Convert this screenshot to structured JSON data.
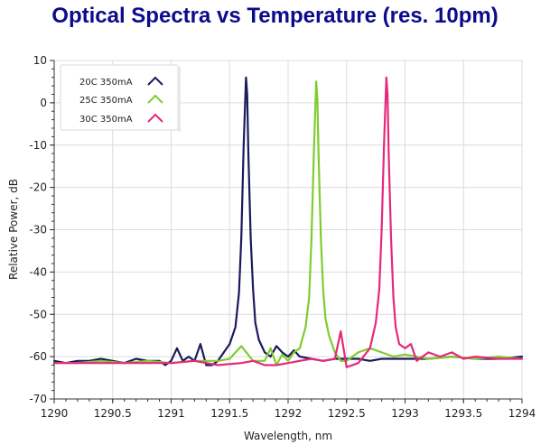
{
  "title": "Optical Spectra vs Temperature (res. 10pm)",
  "chart_data": {
    "type": "line",
    "xlabel": "Wavelength, nm",
    "ylabel": "Relative Power, dB",
    "xlim": [
      1290,
      1294
    ],
    "ylim": [
      -70,
      10
    ],
    "xticks": [
      "1290",
      "1290.5",
      "1291",
      "1291.5",
      "1292",
      "1292.5",
      "1293",
      "1293.5",
      "1294"
    ],
    "yticks": [
      "10",
      "0",
      "-10",
      "-20",
      "-30",
      "-40",
      "-50",
      "-60",
      "-70"
    ],
    "grid": true,
    "legend_position": "top-left",
    "series": [
      {
        "name": "20C 350mA",
        "color": "#1a1a5e",
        "x": [
          1290.0,
          1290.1,
          1290.2,
          1290.3,
          1290.4,
          1290.5,
          1290.6,
          1290.7,
          1290.8,
          1290.9,
          1290.95,
          1291.0,
          1291.05,
          1291.1,
          1291.15,
          1291.2,
          1291.25,
          1291.3,
          1291.35,
          1291.4,
          1291.45,
          1291.5,
          1291.55,
          1291.58,
          1291.6,
          1291.62,
          1291.64,
          1291.65,
          1291.66,
          1291.68,
          1291.7,
          1291.72,
          1291.75,
          1291.8,
          1291.85,
          1291.9,
          1291.95,
          1292.0,
          1292.05,
          1292.1,
          1292.2,
          1292.3,
          1292.4,
          1292.5,
          1292.6,
          1292.7,
          1292.8,
          1292.9,
          1293.0,
          1293.2,
          1293.4,
          1293.6,
          1293.8,
          1294.0
        ],
        "values": [
          -61,
          -61.5,
          -61,
          -61,
          -60.5,
          -61,
          -61.5,
          -60.5,
          -61,
          -61,
          -62,
          -61,
          -58,
          -61,
          -60,
          -61,
          -57,
          -62,
          -62,
          -61,
          -59,
          -57,
          -53,
          -45,
          -32,
          -10,
          6,
          2,
          -12,
          -32,
          -44,
          -52,
          -56,
          -59,
          -60,
          -57.5,
          -59,
          -60,
          -58.5,
          -60,
          -60.5,
          -61,
          -60.5,
          -60.5,
          -60.5,
          -61,
          -60.5,
          -60.5,
          -60.5,
          -60.5,
          -60,
          -60.5,
          -60.5,
          -60
        ]
      },
      {
        "name": "25C 350mA",
        "color": "#7fcc2e",
        "x": [
          1290.0,
          1290.2,
          1290.4,
          1290.6,
          1290.8,
          1291.0,
          1291.2,
          1291.4,
          1291.5,
          1291.6,
          1291.7,
          1291.8,
          1291.85,
          1291.9,
          1291.95,
          1292.0,
          1292.05,
          1292.1,
          1292.15,
          1292.18,
          1292.2,
          1292.22,
          1292.24,
          1292.25,
          1292.26,
          1292.28,
          1292.3,
          1292.32,
          1292.35,
          1292.4,
          1292.45,
          1292.5,
          1292.6,
          1292.7,
          1292.8,
          1292.9,
          1293.0,
          1293.2,
          1293.4,
          1293.6,
          1293.8,
          1294.0
        ],
        "values": [
          -61.5,
          -61.5,
          -61,
          -61.5,
          -61,
          -61.5,
          -61,
          -61,
          -60.5,
          -57.5,
          -61,
          -61,
          -58,
          -62,
          -59.5,
          -61,
          -59,
          -58,
          -53,
          -46,
          -32,
          -12,
          5,
          1,
          -12,
          -32,
          -44,
          -51,
          -55,
          -59,
          -61,
          -61,
          -59,
          -58,
          -59,
          -60,
          -59.5,
          -60.5,
          -60,
          -60.5,
          -60,
          -60.5
        ]
      },
      {
        "name": "30C 350mA",
        "color": "#e5297a",
        "x": [
          1290.0,
          1290.5,
          1291.0,
          1291.2,
          1291.4,
          1291.6,
          1291.7,
          1291.8,
          1291.9,
          1292.0,
          1292.1,
          1292.2,
          1292.3,
          1292.4,
          1292.45,
          1292.5,
          1292.6,
          1292.7,
          1292.75,
          1292.78,
          1292.8,
          1292.82,
          1292.84,
          1292.85,
          1292.86,
          1292.88,
          1292.9,
          1292.92,
          1292.95,
          1293.0,
          1293.05,
          1293.1,
          1293.2,
          1293.3,
          1293.4,
          1293.5,
          1293.6,
          1293.8,
          1294.0
        ],
        "values": [
          -61.5,
          -61.5,
          -61.5,
          -61,
          -62,
          -61.5,
          -61,
          -62,
          -62,
          -61.5,
          -61,
          -60.5,
          -61,
          -60.5,
          -54,
          -62.5,
          -61.5,
          -58,
          -52,
          -44,
          -30,
          -10,
          6,
          2,
          -12,
          -32,
          -46,
          -53,
          -57,
          -58,
          -57,
          -61,
          -59,
          -60,
          -59,
          -60.5,
          -60,
          -60.5,
          -60.5
        ]
      }
    ]
  }
}
